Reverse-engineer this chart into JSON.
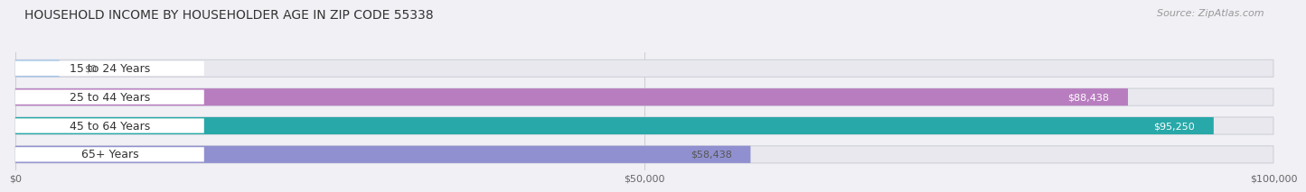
{
  "title": "HOUSEHOLD INCOME BY HOUSEHOLDER AGE IN ZIP CODE 55338",
  "source": "Source: ZipAtlas.com",
  "categories": [
    "15 to 24 Years",
    "25 to 44 Years",
    "45 to 64 Years",
    "65+ Years"
  ],
  "values": [
    0,
    88438,
    95250,
    58438
  ],
  "bar_colors": [
    "#a8c8e8",
    "#b87dbf",
    "#28a8a8",
    "#9090d0"
  ],
  "bar_bg_color": "#e8e8ee",
  "bar_outline_color": "#d0d0da",
  "label_colors_inside": [
    "#555555",
    "#ffffff",
    "#ffffff",
    "#555555"
  ],
  "xlim": [
    0,
    100000
  ],
  "xticks": [
    0,
    50000,
    100000
  ],
  "xtick_labels": [
    "$0",
    "$50,000",
    "$100,000"
  ],
  "background_color": "#f0f0f5",
  "title_fontsize": 10,
  "source_fontsize": 8,
  "tick_fontsize": 8,
  "label_fontsize": 8,
  "cat_fontsize": 9
}
